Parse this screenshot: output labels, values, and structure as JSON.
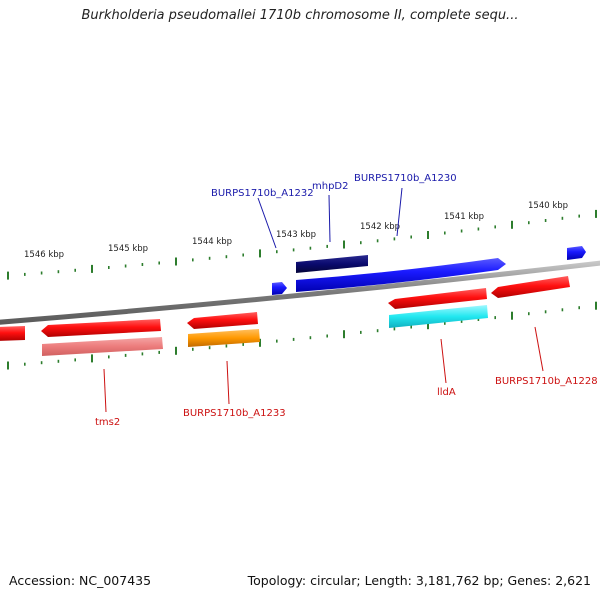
{
  "title": "Burkholderia pseudomallei 1710b chromosome II, complete sequ...",
  "footer": {
    "accession": "Accession: NC_007435",
    "summary": "Topology: circular; Length: 3,181,762 bp; Genes: 2,621"
  },
  "colors": {
    "backbone": "#8a8a8a",
    "ticks": "#2d7d2d",
    "forward_label": "#1a1aaa",
    "reverse_label": "#cc1111",
    "forward_gene": "#1a1aff",
    "forward_dark": "#0a0a6e",
    "reverse_gene": "#ff1a1a",
    "reverse_light": "#f08080",
    "orange": "#ff9900",
    "cyan": "#22e8f0"
  },
  "ticks": [
    {
      "label": "1546 kbp"
    },
    {
      "label": "1545 kbp"
    },
    {
      "label": "1544 kbp"
    },
    {
      "label": "1543 kbp"
    },
    {
      "label": "1542 kbp"
    },
    {
      "label": "1541 kbp"
    },
    {
      "label": "1540 kbp"
    }
  ],
  "gene_labels": [
    {
      "text": "BURPS1710b_A1232",
      "strand": "forward"
    },
    {
      "text": "mhpD2",
      "strand": "forward"
    },
    {
      "text": "BURPS1710b_A1230",
      "strand": "forward"
    },
    {
      "text": "tms2",
      "strand": "reverse"
    },
    {
      "text": "BURPS1710b_A1233",
      "strand": "reverse"
    },
    {
      "text": "lldA",
      "strand": "reverse"
    },
    {
      "text": "BURPS1710b_A1228",
      "strand": "reverse"
    }
  ]
}
